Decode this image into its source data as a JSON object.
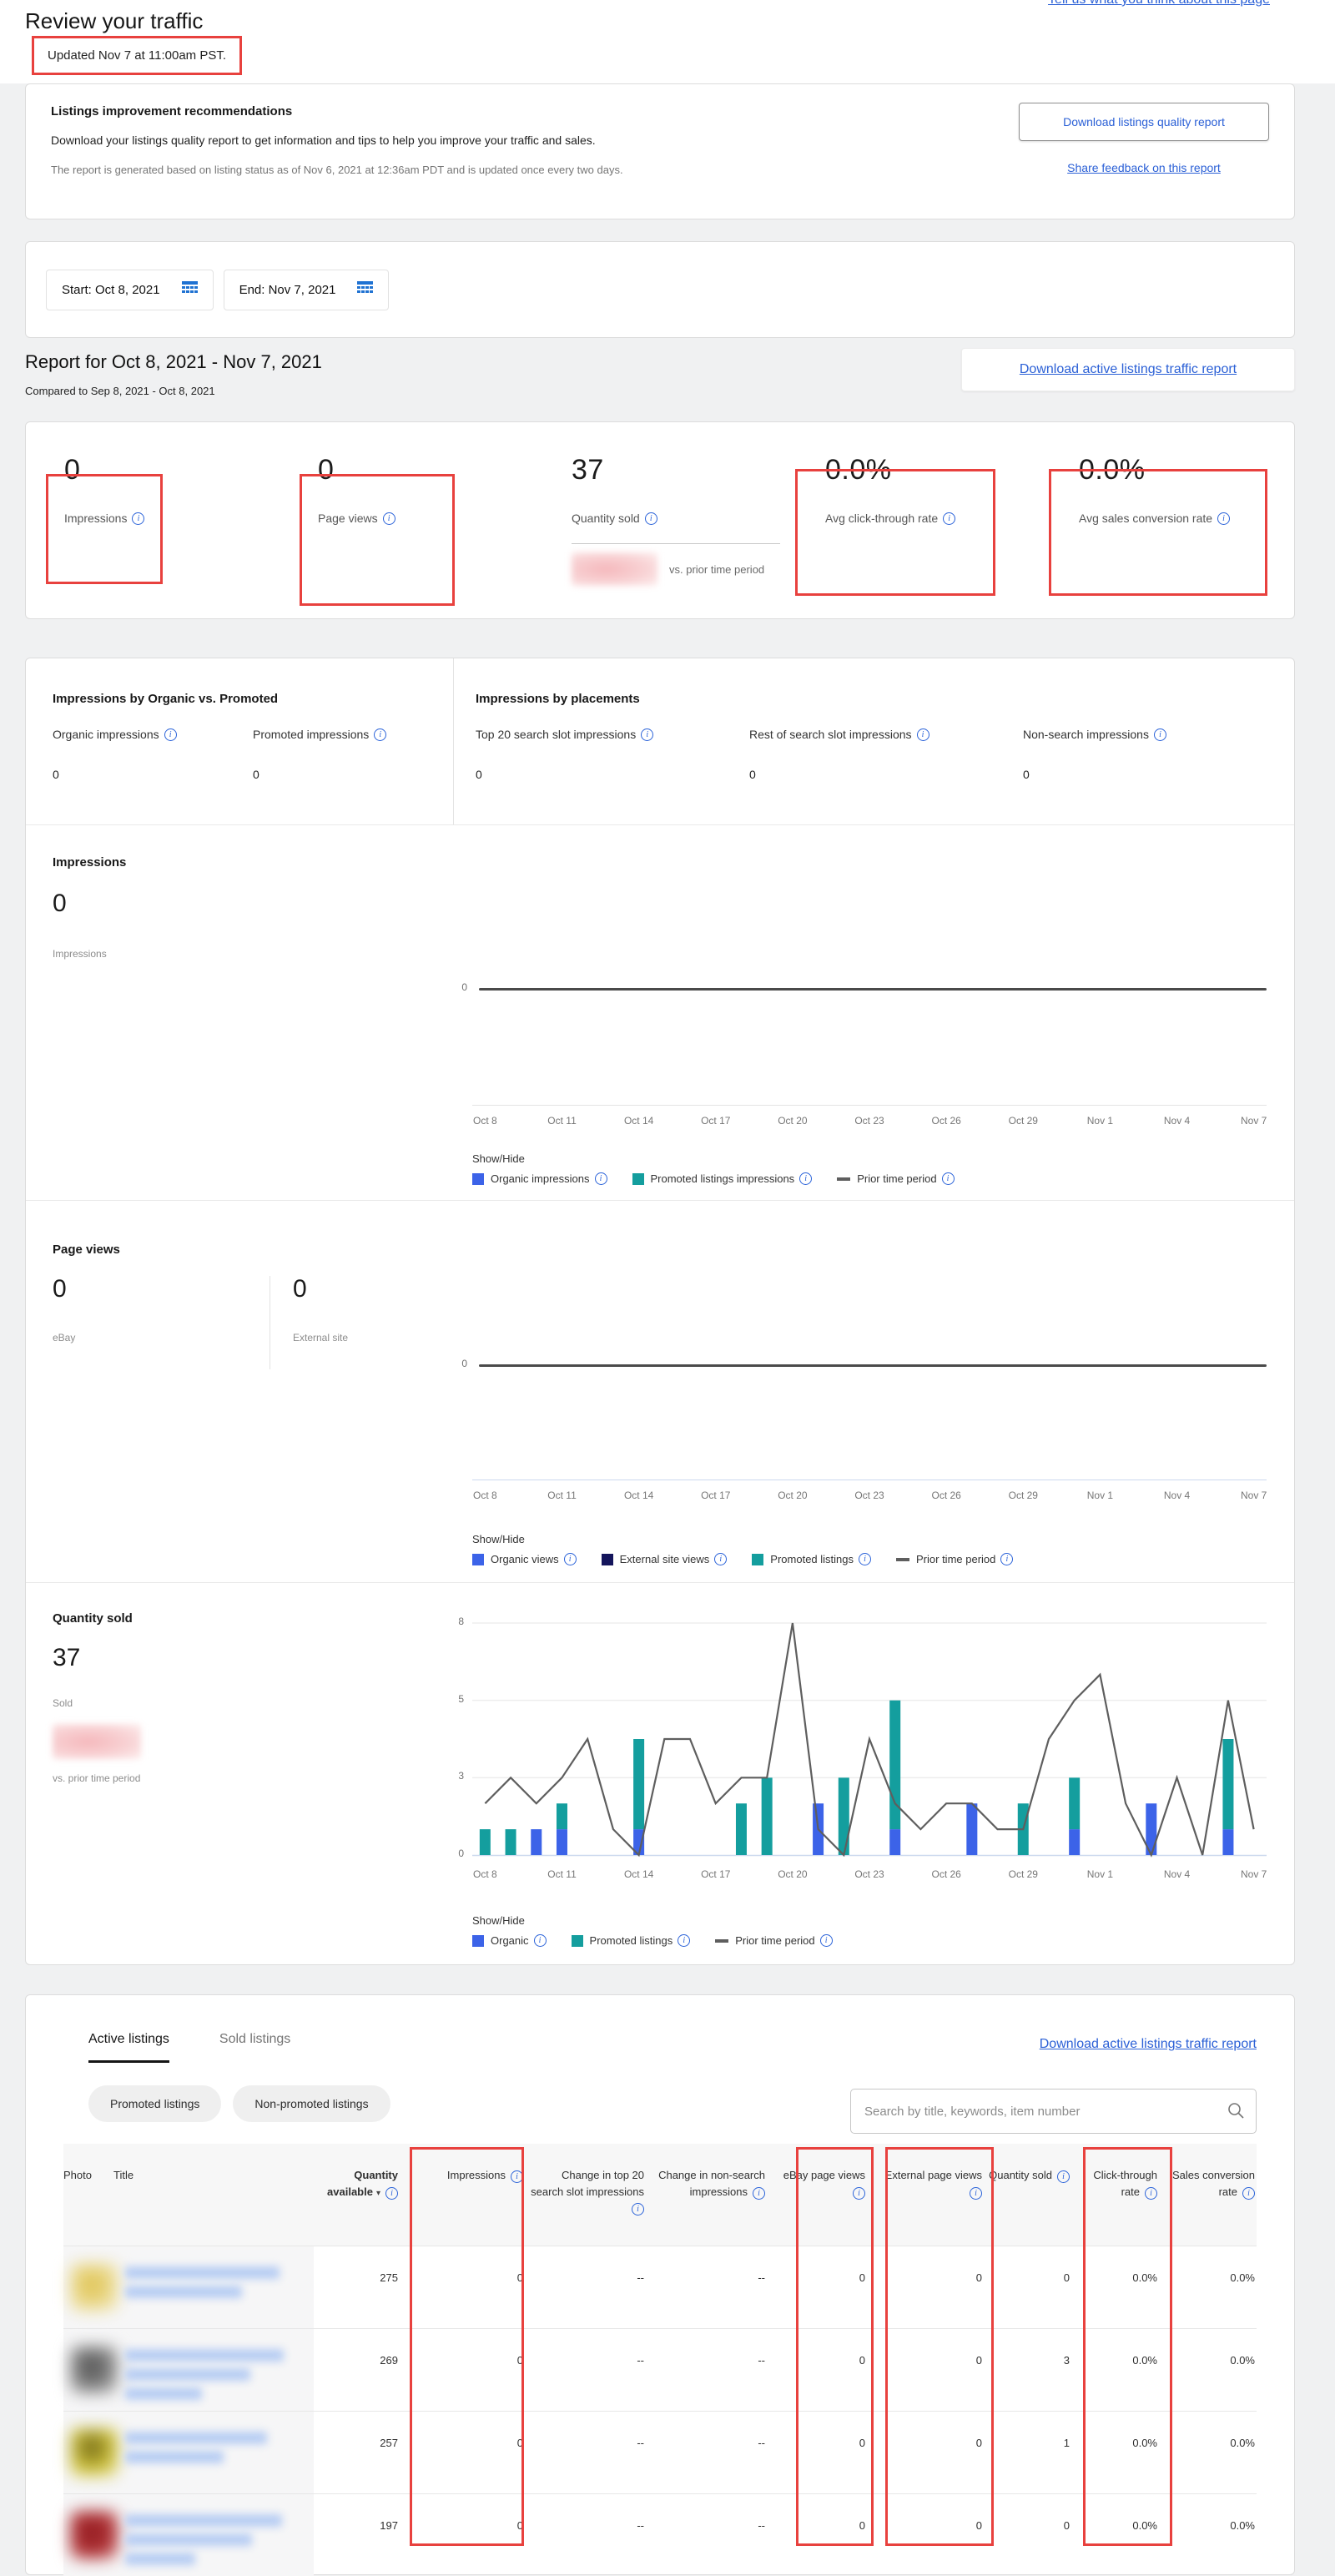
{
  "colors": {
    "annotation_red": "#e8413e",
    "link_blue": "#2b60d6",
    "organic_blue": "#3c63e8",
    "promoted_teal": "#149e9e",
    "external_navy": "#14155c",
    "prior_gray": "#5e5e5e",
    "info_blue": "#2b63d9"
  },
  "header": {
    "title": "Review your traffic",
    "feedback_link": "Tell us what you think about this page",
    "updated": "Updated Nov 7 at 11:00am PST."
  },
  "recommendations": {
    "title": "Listings improvement recommendations",
    "body": "Download your listings quality report to get information and tips to help you improve your traffic and sales.",
    "note": "The report is generated based on listing status as of Nov 6, 2021 at 12:36am PDT and is updated once every two days.",
    "download_button": "Download listings quality report",
    "share_link": "Share feedback on this report"
  },
  "date_range": {
    "start": "Start: Oct 8, 2021",
    "end": "End: Nov 7, 2021"
  },
  "report": {
    "heading": "Report for Oct 8, 2021 - Nov 7, 2021",
    "compared": "Compared to Sep 8, 2021 - Oct 8, 2021",
    "download_link": "Download active listings traffic report"
  },
  "metrics": [
    {
      "value": "0",
      "label": "Impressions",
      "boxed": true
    },
    {
      "value": "0",
      "label": "Page views",
      "boxed": true
    },
    {
      "value": "37",
      "label": "Quantity sold",
      "boxed": false,
      "vs_label": "vs. prior time period"
    },
    {
      "value": "0.0%",
      "label": "Avg click-through rate",
      "boxed": true
    },
    {
      "value": "0.0%",
      "label": "Avg sales conversion rate",
      "boxed": true
    }
  ],
  "breakdown": {
    "organic_vs_promoted": {
      "title": "Impressions by Organic vs. Promoted",
      "items": [
        {
          "label": "Organic impressions",
          "value": "0"
        },
        {
          "label": "Promoted impressions",
          "value": "0"
        }
      ]
    },
    "placements": {
      "title": "Impressions by placements",
      "items": [
        {
          "label": "Top 20 search slot impressions",
          "value": "0"
        },
        {
          "label": "Rest of search slot impressions",
          "value": "0"
        },
        {
          "label": "Non-search impressions",
          "value": "0"
        }
      ]
    }
  },
  "charts_common": {
    "show_hide": "Show/Hide",
    "days": [
      "Oct 8",
      "Oct 9",
      "Oct 10",
      "Oct 11",
      "Oct 12",
      "Oct 13",
      "Oct 14",
      "Oct 15",
      "Oct 16",
      "Oct 17",
      "Oct 18",
      "Oct 19",
      "Oct 20",
      "Oct 21",
      "Oct 22",
      "Oct 23",
      "Oct 24",
      "Oct 25",
      "Oct 26",
      "Oct 27",
      "Oct 28",
      "Oct 29",
      "Oct 30",
      "Oct 31",
      "Nov 1",
      "Nov 2",
      "Nov 3",
      "Nov 4",
      "Nov 5",
      "Nov 6",
      "Nov 7"
    ],
    "tick_labels": [
      "Oct 8",
      "Oct 11",
      "Oct 14",
      "Oct 17",
      "Oct 20",
      "Oct 23",
      "Oct 26",
      "Oct 29",
      "Nov 1",
      "Nov 4",
      "Nov 7"
    ]
  },
  "chart_data": [
    {
      "id": "impressions",
      "type": "line",
      "title": "Impressions",
      "summary_value": "0",
      "summary_label": "Impressions",
      "y_ticks": [
        "0"
      ],
      "legend": [
        {
          "label": "Organic impressions",
          "swatch": "organic"
        },
        {
          "label": "Promoted listings impressions",
          "swatch": "promoted"
        },
        {
          "label": "Prior time period",
          "swatch": "prior"
        }
      ],
      "series": [
        {
          "name": "Organic impressions",
          "values": [
            0,
            0,
            0,
            0,
            0,
            0,
            0,
            0,
            0,
            0,
            0,
            0,
            0,
            0,
            0,
            0,
            0,
            0,
            0,
            0,
            0,
            0,
            0,
            0,
            0,
            0,
            0,
            0,
            0,
            0,
            0
          ]
        },
        {
          "name": "Promoted listings impressions",
          "values": [
            0,
            0,
            0,
            0,
            0,
            0,
            0,
            0,
            0,
            0,
            0,
            0,
            0,
            0,
            0,
            0,
            0,
            0,
            0,
            0,
            0,
            0,
            0,
            0,
            0,
            0,
            0,
            0,
            0,
            0,
            0
          ]
        },
        {
          "name": "Prior time period",
          "values": [
            0,
            0,
            0,
            0,
            0,
            0,
            0,
            0,
            0,
            0,
            0,
            0,
            0,
            0,
            0,
            0,
            0,
            0,
            0,
            0,
            0,
            0,
            0,
            0,
            0,
            0,
            0,
            0,
            0,
            0,
            0
          ]
        }
      ]
    },
    {
      "id": "page_views",
      "type": "line",
      "title": "Page views",
      "stats": [
        {
          "value": "0",
          "label": "eBay"
        },
        {
          "value": "0",
          "label": "External site"
        }
      ],
      "y_ticks": [
        "0"
      ],
      "legend": [
        {
          "label": "Organic views",
          "swatch": "organic"
        },
        {
          "label": "External site views",
          "swatch": "external"
        },
        {
          "label": "Promoted listings",
          "swatch": "promoted"
        },
        {
          "label": "Prior time period",
          "swatch": "prior"
        }
      ],
      "series": [
        {
          "name": "Organic views",
          "values": [
            0,
            0,
            0,
            0,
            0,
            0,
            0,
            0,
            0,
            0,
            0,
            0,
            0,
            0,
            0,
            0,
            0,
            0,
            0,
            0,
            0,
            0,
            0,
            0,
            0,
            0,
            0,
            0,
            0,
            0,
            0
          ]
        },
        {
          "name": "External site views",
          "values": [
            0,
            0,
            0,
            0,
            0,
            0,
            0,
            0,
            0,
            0,
            0,
            0,
            0,
            0,
            0,
            0,
            0,
            0,
            0,
            0,
            0,
            0,
            0,
            0,
            0,
            0,
            0,
            0,
            0,
            0,
            0
          ]
        },
        {
          "name": "Promoted listings",
          "values": [
            0,
            0,
            0,
            0,
            0,
            0,
            0,
            0,
            0,
            0,
            0,
            0,
            0,
            0,
            0,
            0,
            0,
            0,
            0,
            0,
            0,
            0,
            0,
            0,
            0,
            0,
            0,
            0,
            0,
            0,
            0
          ]
        },
        {
          "name": "Prior time period",
          "values": [
            0,
            0,
            0,
            0,
            0,
            0,
            0,
            0,
            0,
            0,
            0,
            0,
            0,
            0,
            0,
            0,
            0,
            0,
            0,
            0,
            0,
            0,
            0,
            0,
            0,
            0,
            0,
            0,
            0,
            0,
            0
          ]
        }
      ]
    },
    {
      "id": "quantity_sold",
      "type": "bar_line",
      "title": "Quantity sold",
      "summary_value": "37",
      "summary_label": "Sold",
      "vs_label": "vs. prior time period",
      "y_ticks": [
        "8",
        "5",
        "3",
        "0"
      ],
      "y_tick_values": [
        8,
        5,
        3,
        0
      ],
      "legend": [
        {
          "label": "Organic",
          "swatch": "organic"
        },
        {
          "label": "Promoted listings",
          "swatch": "promoted"
        },
        {
          "label": "Prior time period",
          "swatch": "prior"
        }
      ],
      "series": [
        {
          "name": "Organic",
          "values": [
            0,
            0,
            1,
            1,
            0,
            0,
            1,
            0,
            0,
            0,
            0,
            0,
            0,
            2,
            0,
            0,
            1,
            0,
            0,
            2,
            0,
            0,
            0,
            1,
            0,
            0,
            2,
            0,
            0,
            1,
            0
          ]
        },
        {
          "name": "Promoted listings",
          "values": [
            1,
            1,
            0,
            1,
            0,
            0,
            3,
            0,
            0,
            0,
            2,
            3,
            0,
            0,
            3,
            0,
            4,
            0,
            0,
            0,
            0,
            2,
            0,
            2,
            0,
            0,
            0,
            0,
            0,
            3,
            0
          ]
        },
        {
          "name": "Prior time period",
          "values": [
            2,
            3,
            2,
            3,
            4,
            1,
            0,
            4,
            4,
            2,
            3,
            3,
            8,
            1,
            0,
            4,
            2,
            1,
            2,
            2,
            1,
            1,
            4,
            5,
            6,
            2,
            0,
            3,
            0,
            5,
            1
          ]
        }
      ]
    }
  ],
  "listings": {
    "tabs": [
      {
        "label": "Active listings",
        "active": true
      },
      {
        "label": "Sold listings",
        "active": false
      }
    ],
    "download_link": "Download active listings traffic report",
    "filters": [
      "Promoted listings",
      "Non-promoted listings"
    ],
    "search_placeholder": "Search by title, keywords, item number",
    "sort_arrow": "▾",
    "columns": [
      {
        "label": "Photo",
        "info": false,
        "align": "left"
      },
      {
        "label": "Title",
        "info": false,
        "align": "left"
      },
      {
        "label": "Quantity available",
        "info": true,
        "sort": true,
        "bold": true,
        "align": "right"
      },
      {
        "label": "Impressions",
        "info": true,
        "align": "right"
      },
      {
        "label": "Change in top 20 search slot impressions",
        "info": true,
        "align": "right"
      },
      {
        "label": "Change in non-search impressions",
        "info": true,
        "align": "right"
      },
      {
        "label": "eBay page views",
        "info": true,
        "align": "right"
      },
      {
        "label": "External page views",
        "info": true,
        "align": "right"
      },
      {
        "label": "Quantity sold",
        "info": true,
        "align": "right"
      },
      {
        "label": "Click-through rate",
        "info": true,
        "align": "right"
      },
      {
        "label": "Sales conversion rate",
        "info": true,
        "align": "right"
      }
    ],
    "rows": [
      {
        "quantity_available": "275",
        "impressions": "0",
        "change_top20": "--",
        "change_nonsearch": "--",
        "ebay_page_views": "0",
        "external_page_views": "0",
        "quantity_sold": "0",
        "click_through_rate": "0.0%",
        "sales_conversion_rate": "0.0%",
        "photo": "yellow",
        "title_lines": 2
      },
      {
        "quantity_available": "269",
        "impressions": "0",
        "change_top20": "--",
        "change_nonsearch": "--",
        "ebay_page_views": "0",
        "external_page_views": "0",
        "quantity_sold": "3",
        "click_through_rate": "0.0%",
        "sales_conversion_rate": "0.0%",
        "photo": "dark_gray",
        "title_lines": 3
      },
      {
        "quantity_available": "257",
        "impressions": "0",
        "change_top20": "--",
        "change_nonsearch": "--",
        "ebay_page_views": "0",
        "external_page_views": "0",
        "quantity_sold": "1",
        "click_through_rate": "0.0%",
        "sales_conversion_rate": "0.0%",
        "photo": "olive_yellow",
        "title_lines": 2
      },
      {
        "quantity_available": "197",
        "impressions": "0",
        "change_top20": "--",
        "change_nonsearch": "--",
        "ebay_page_views": "0",
        "external_page_views": "0",
        "quantity_sold": "0",
        "click_through_rate": "0.0%",
        "sales_conversion_rate": "0.0%",
        "photo": "dark_red",
        "title_lines": 3
      }
    ]
  }
}
